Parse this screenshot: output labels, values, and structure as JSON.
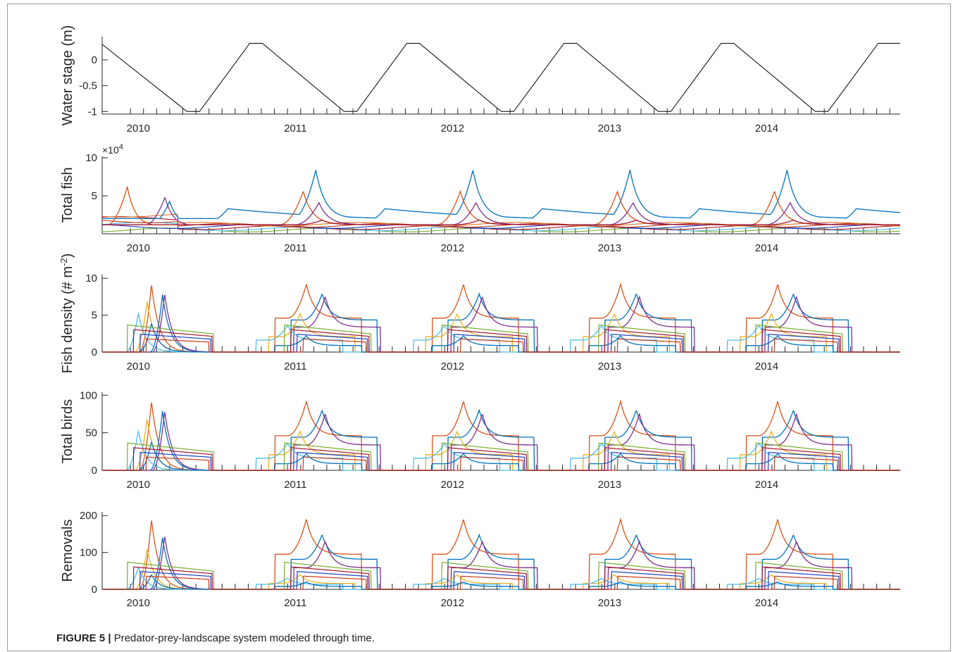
{
  "figure": {
    "label": "FIGURE 5 |",
    "caption": "Predator-prey-landscape system modeled through time."
  },
  "years": [
    "2010",
    "2011",
    "2012",
    "2013",
    "2014"
  ],
  "palette": [
    "#0072BD",
    "#D95319",
    "#EDB120",
    "#7E2F8E",
    "#77AC30",
    "#4DBEEE",
    "#A2142F",
    "#1f3fbf",
    "#c23b22",
    "#e07020"
  ],
  "chart_data": [
    {
      "type": "line",
      "ylabel": "Water stage (m)",
      "ytick_labels": [
        "0",
        "-0.5",
        "-1"
      ],
      "yticks": [
        0,
        -0.5,
        -1
      ],
      "ylim": [
        -1.05,
        0.45
      ],
      "xlim": [
        2009.82,
        2014.9
      ],
      "x": [
        2009.82,
        2010.36,
        2010.44,
        2010.76,
        2010.84,
        2011.36,
        2011.44,
        2011.76,
        2011.84,
        2012.36,
        2012.44,
        2012.76,
        2012.84,
        2013.36,
        2013.44,
        2013.76,
        2013.84,
        2014.36,
        2014.44,
        2014.76,
        2014.84,
        2014.9
      ],
      "series": [
        {
          "values": [
            0.3,
            -1,
            -1,
            0.32,
            0.32,
            -1,
            -1,
            0.32,
            0.32,
            -1,
            -1,
            0.32,
            0.32,
            -1,
            -1,
            0.32,
            0.32,
            -1,
            -1,
            0.32,
            0.32,
            0.32
          ],
          "color": "#000000"
        }
      ]
    },
    {
      "type": "line",
      "ylabel": "Total fish",
      "multiplier": "×10",
      "multiplier_exp": "4",
      "ytick_labels": [
        "10",
        "5"
      ],
      "yticks": [
        10,
        5
      ],
      "ylim": [
        0,
        10.2
      ],
      "xlim": [
        2009.82,
        2014.9
      ],
      "peaks_2010": [
        {
          "series": 1,
          "peak_x": 2009.98,
          "peak_y": 6.2
        },
        {
          "series": 1,
          "peak_x": 2010.1,
          "peak_y": 5.3
        },
        {
          "series": 3,
          "peak_x": 2010.22,
          "peak_y": 4.8
        },
        {
          "series": 0,
          "peak_x": 2010.25,
          "peak_y": 4.3
        }
      ],
      "annual_peaks": [
        {
          "series": 0,
          "peak_offset": 0.18,
          "peak_y": 8.4
        },
        {
          "series": 1,
          "peak_offset": 0.1,
          "peak_y": 5.6
        },
        {
          "series": 3,
          "peak_offset": 0.2,
          "peak_y": 4.1
        },
        {
          "series": 6,
          "peak_offset": 0.22,
          "peak_y": 1.8
        }
      ],
      "baseline_blue": 3.3
    },
    {
      "type": "line",
      "ylabel": "Fish density (# m",
      "ylabel_sup": "-2",
      "ylabel_tail": ")",
      "ytick_labels": [
        "10",
        "5",
        "0"
      ],
      "yticks": [
        10,
        5,
        0
      ],
      "ylim": [
        0,
        10.5
      ],
      "xlim": [
        2009.82,
        2014.9
      ],
      "first_year_peaks": [
        9.2,
        7.8,
        7.9,
        6.9,
        5.3,
        3.9
      ],
      "annual_peaks": [
        9.2,
        7.9,
        7.5,
        5.2,
        3.6,
        2.2
      ]
    },
    {
      "type": "line",
      "ylabel": "Total birds",
      "ytick_labels": [
        "100",
        "50",
        "0"
      ],
      "yticks": [
        100,
        50,
        0
      ],
      "ylim": [
        0,
        104
      ],
      "xlim": [
        2009.82,
        2014.9
      ],
      "first_year_peaks": [
        92,
        79,
        79,
        69,
        53,
        38
      ],
      "annual_peaks": [
        92,
        80,
        75,
        52,
        36,
        22
      ]
    },
    {
      "type": "line",
      "ylabel": "Removals",
      "ytick_labels": [
        "200",
        "100",
        "0"
      ],
      "yticks": [
        200,
        100,
        0
      ],
      "ylim": [
        0,
        210
      ],
      "xlim": [
        2009.82,
        2014.9
      ],
      "first_year_peaks": [
        190,
        140,
        145,
        110,
        60,
        40
      ],
      "annual_peaks": [
        190,
        148,
        130,
        40,
        30,
        20
      ]
    }
  ]
}
